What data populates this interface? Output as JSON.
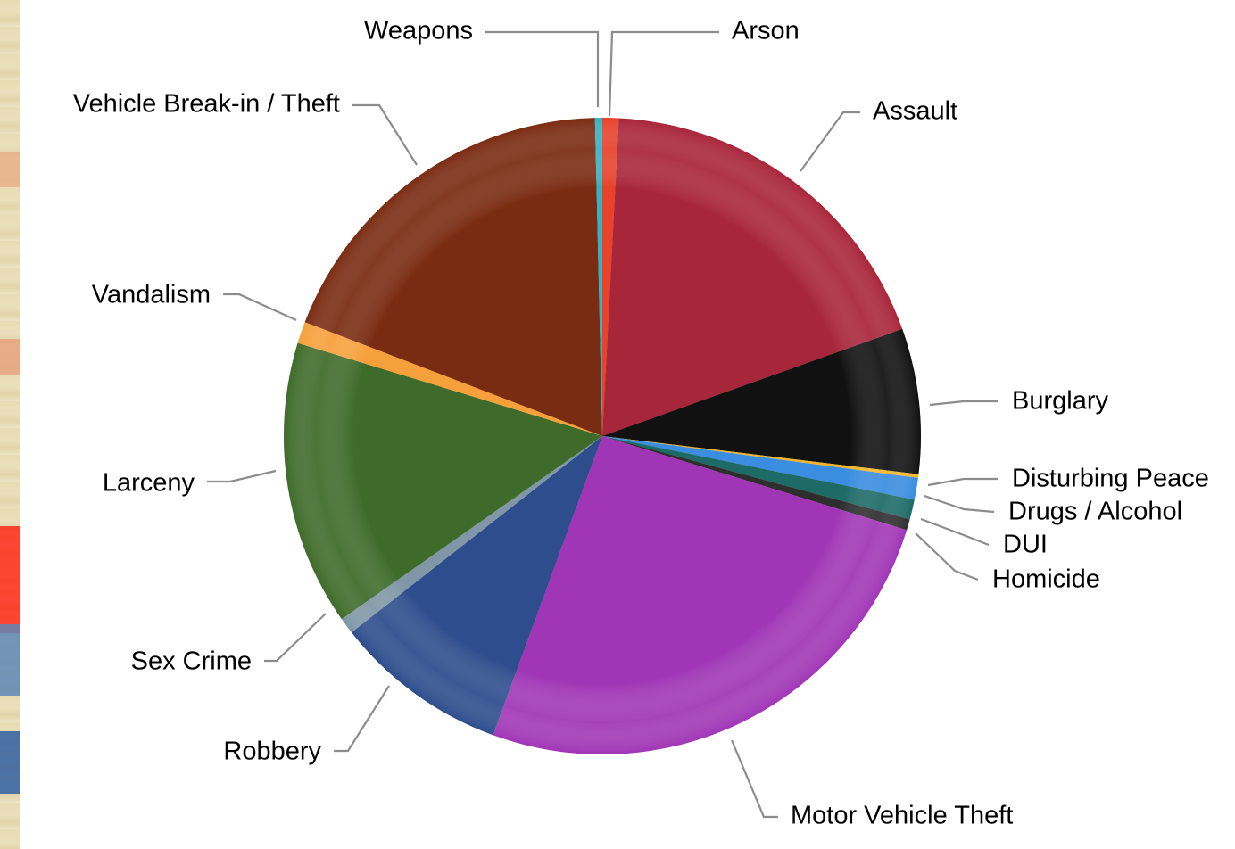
{
  "chart_data": {
    "type": "pie",
    "title": "",
    "slices": [
      {
        "label": "Arson",
        "value": 0.9,
        "color": "#e8422a"
      },
      {
        "label": "Assault",
        "value": 20.3,
        "color": "#a8263a"
      },
      {
        "label": "Burglary",
        "value": 8.0,
        "color": "#111111"
      },
      {
        "label": "Disturbing Peace",
        "value": 0.2,
        "color": "#f5b52a"
      },
      {
        "label": "Drugs / Alcohol",
        "value": 1.2,
        "color": "#3a8de0"
      },
      {
        "label": "DUI",
        "value": 1.1,
        "color": "#1d6a66"
      },
      {
        "label": "Homicide",
        "value": 0.6,
        "color": "#2e2e2e"
      },
      {
        "label": "Motor Vehicle Theft",
        "value": 28.0,
        "color": "#a036b6"
      },
      {
        "label": "Robbery",
        "value": 9.6,
        "color": "#2d4d8c"
      },
      {
        "label": "Sex Crime",
        "value": 0.9,
        "color": "#7f97a6"
      },
      {
        "label": "Larceny",
        "value": 15.7,
        "color": "#3f6b2a"
      },
      {
        "label": "Vandalism",
        "value": 1.2,
        "color": "#f6a03b"
      },
      {
        "label": "Vehicle Break-in / Theft",
        "value": 20.4,
        "color": "#7a2c12"
      },
      {
        "label": "Weapons",
        "value": 0.4,
        "color": "#3ab0c0"
      }
    ],
    "legend": "none"
  }
}
